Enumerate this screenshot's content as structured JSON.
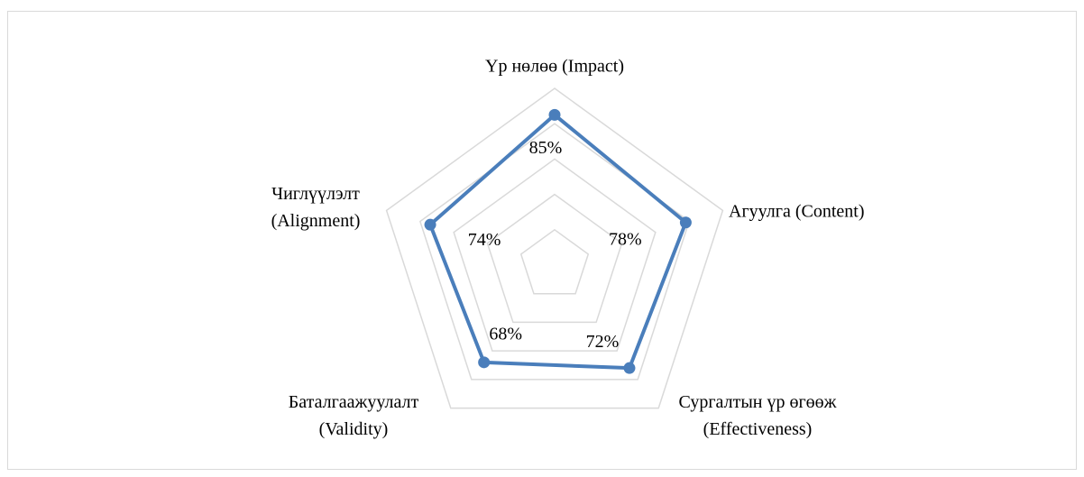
{
  "chart_data": {
    "type": "radar",
    "categories": [
      "Үр нөлөө (Impact)",
      "Агуулга (Content)",
      "Сургалтын үр өгөөж\n(Effectiveness)",
      "Баталгаажуулалт\n(Validity)",
      "Чиглүүлэлт\n(Alignment)"
    ],
    "values": [
      85,
      78,
      72,
      68,
      74
    ],
    "value_labels": [
      "85%",
      "78%",
      "72%",
      "68%",
      "74%"
    ],
    "color": "#4a7ebb",
    "ylim": [
      0,
      100
    ],
    "yticks": [
      0,
      20,
      40,
      60,
      80,
      100
    ],
    "grid": true
  }
}
